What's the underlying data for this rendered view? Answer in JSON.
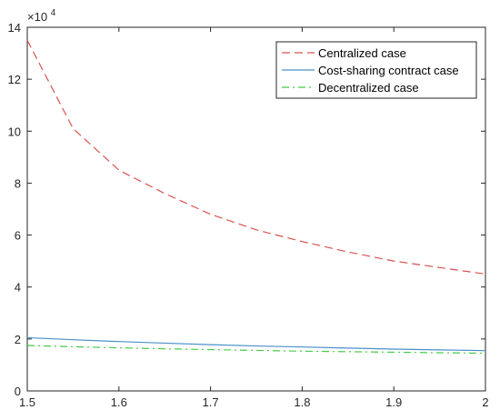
{
  "chart_data": {
    "type": "line",
    "title": "",
    "xlabel": "",
    "ylabel": "",
    "xlim": [
      1.5,
      2.0
    ],
    "ylim": [
      0,
      140000
    ],
    "x_ticks": [
      1.5,
      1.6,
      1.7,
      1.8,
      1.9,
      2.0
    ],
    "x_tick_labels": [
      "1.5",
      "1.6",
      "1.7",
      "1.8",
      "1.9",
      "2"
    ],
    "y_ticks": [
      0,
      20000,
      40000,
      60000,
      80000,
      100000,
      120000,
      140000
    ],
    "y_tick_labels": [
      "0",
      "2",
      "4",
      "6",
      "8",
      "10",
      "12",
      "14"
    ],
    "y_exponent_label": {
      "base": "×10",
      "exp": "4"
    },
    "grid": false,
    "legend_position": "top-right",
    "x": [
      1.5,
      1.55,
      1.6,
      1.65,
      1.7,
      1.75,
      1.8,
      1.85,
      1.9,
      1.95,
      2.0
    ],
    "series": [
      {
        "name": "Centralized case",
        "style": "dashed",
        "color": "#d9534f",
        "values": [
          135000,
          101000,
          85000,
          76000,
          68000,
          62000,
          57500,
          53500,
          50000,
          47500,
          45000
        ]
      },
      {
        "name": "Cost-sharing contract case",
        "style": "solid",
        "color": "#4a90c9",
        "values": [
          20500,
          19700,
          19000,
          18400,
          17800,
          17300,
          16900,
          16500,
          16100,
          15800,
          15500
        ]
      },
      {
        "name": "Decentralized case",
        "style": "dashdot",
        "color": "#44cc44",
        "values": [
          17500,
          17000,
          16600,
          16200,
          15900,
          15600,
          15300,
          15100,
          14900,
          14700,
          14500
        ]
      }
    ]
  }
}
